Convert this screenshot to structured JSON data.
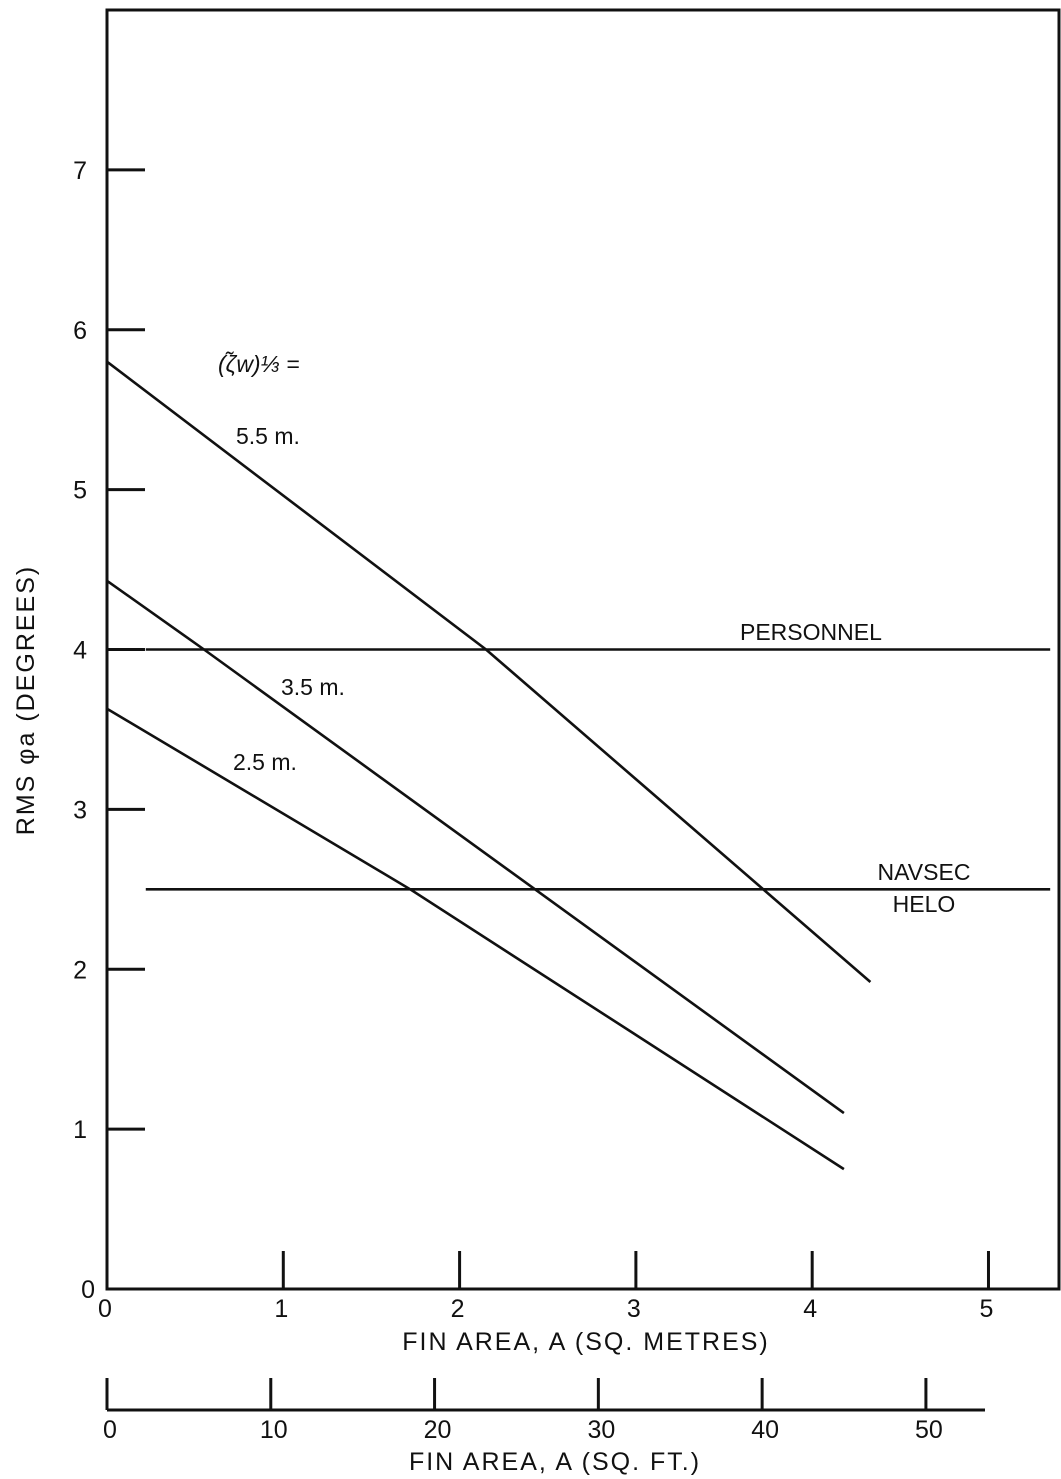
{
  "chart_data": {
    "type": "line",
    "ylabel": "RMS φa (DEGREES)",
    "xlabel": "FIN AREA, A (SQ. METRES)",
    "xlabel_secondary": "FIN AREA, A (SQ. FT.)",
    "xlim": [
      0,
      5.4
    ],
    "ylim": [
      0,
      8
    ],
    "x_ticks": [
      "0",
      "1",
      "2",
      "3",
      "4",
      "5"
    ],
    "x_tick_values": [
      0,
      1,
      2,
      3,
      4,
      5
    ],
    "y_ticks": [
      "0",
      "1",
      "2",
      "3",
      "4",
      "5",
      "6",
      "7"
    ],
    "y_tick_values": [
      0,
      1,
      2,
      3,
      4,
      5,
      6,
      7
    ],
    "x2_ticks": [
      "0",
      "10",
      "20",
      "30",
      "40",
      "50"
    ],
    "x2_tick_values": [
      0,
      10,
      20,
      30,
      40,
      50
    ],
    "x2_per_x": 10.764,
    "legend_header": "(ζ̃w)⅓ =",
    "grid": false,
    "series": [
      {
        "name": "5.5 m.",
        "x": [
          0,
          2.15,
          4.33
        ],
        "y": [
          5.8,
          4.0,
          1.92
        ]
      },
      {
        "name": "3.5 m.",
        "x": [
          0,
          0.55,
          4.18
        ],
        "y": [
          4.43,
          4.0,
          1.1
        ]
      },
      {
        "name": "2.5 m.",
        "x": [
          0,
          1.72,
          4.18
        ],
        "y": [
          3.63,
          2.5,
          0.75
        ]
      }
    ],
    "reference_lines": [
      {
        "name": "PERSONNEL",
        "y": 4.0,
        "x": [
          0.22,
          5.35
        ]
      },
      {
        "name": "NAVSEC",
        "name2": "HELO",
        "y": 2.5,
        "x": [
          0.22,
          5.35
        ]
      }
    ]
  }
}
